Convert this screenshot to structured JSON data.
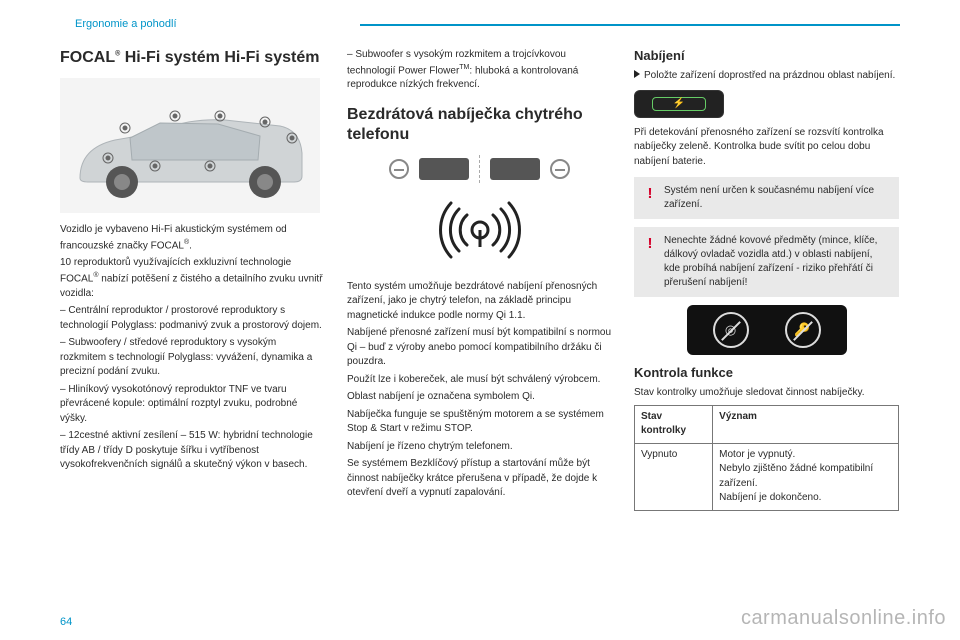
{
  "header": {
    "section": "Ergonomie a pohodlí"
  },
  "page_number": "64",
  "watermark": "carmanualsonline.info",
  "col1": {
    "title_html": "FOCAL<sup>®</sup> Hi-Fi systém  Hi-Fi systém",
    "p1_html": "Vozidlo je vybaveno Hi-Fi akustickým systémem od francouzské značky FOCAL<sup>®</sup>.",
    "p2_html": "10 reproduktorů využívajících exkluzivní technologie FOCAL<sup>®</sup> nabízí potěšení z čistého a detailního zvuku uvnitř vozidla:",
    "b1": "–  Centrální reproduktor / prostorové reproduktory s technologií Polyglass: podmanivý zvuk a prostorový dojem.",
    "b2": "–  Subwoofery / středové reproduktory s vysokým rozkmitem s technologií Polyglass: vyvážení, dynamika a precizní podání zvuku.",
    "b3": "–  Hliníkový vysokotónový reproduktor TNF ve tvaru převrácené kopule: optimální rozptyl zvuku, podrobné výšky.",
    "b4": "–  12cestné aktivní zesílení – 515 W: hybridní technologie třídy AB / třídy D poskytuje šířku i vytříbenost vysokofrekvenčních signálů a skutečný výkon v basech."
  },
  "col2": {
    "top_html": "–  Subwoofer s vysokým rozkmitem a trojcívkovou technologií Power Flower<sup>TM</sup>: hluboká a kontrolovaná reprodukce nízkých frekvencí.",
    "title": "Bezdrátová nabíječka chytrého telefonu",
    "p1": "Tento systém umožňuje bezdrátové nabíjení přenosných zařízení, jako je chytrý telefon, na základě principu magnetické indukce podle normy Qi 1.1.",
    "p2": "Nabíjené přenosné zařízení musí být kompatibilní s normou Qi – buď z výroby anebo pomocí kompatibilního držáku či pouzdra.",
    "p3": "Použít lze i kobereček, ale musí být schválený výrobcem.",
    "p4": "Oblast nabíjení je označena symbolem Qi.",
    "p5": "Nabíječka funguje se spuštěným motorem a se systémem Stop & Start v režimu STOP.",
    "p6": "Nabíjení je řízeno chytrým telefonem.",
    "p7": "Se systémem Bezklíčový přístup a startování může být činnost nabíječky krátce přerušena v případě, že dojde k otevření dveří a vypnutí zapalování."
  },
  "col3": {
    "h_charge": "Nabíjení",
    "charge_instr": "Položte zařízení doprostřed na prázdnou oblast nabíjení.",
    "detect": "Při detekování přenosného zařízení se rozsvítí kontrolka nabíječky zeleně. Kontrolka bude svítit po celou dobu nabíjení baterie.",
    "warn1": "Systém není určen k současnému nabíjení více zařízení.",
    "warn2": "Nenechte žádné kovové předměty (mince, klíče, dálkový ovladač vozidla atd.) v oblasti nabíjení, kde probíhá nabíjení zařízení - riziko přehřátí či přerušení nabíjení!",
    "h_func": "Kontrola funkce",
    "func_p": "Stav kontrolky umožňuje sledovat činnost nabíječky.",
    "table": {
      "th1": "Stav kontrolky",
      "th2": "Význam",
      "r1c1": "Vypnuto",
      "r1c2": "Motor je vypnutý.\nNebylo zjištěno žádné kompatibilní zařízení.\nNabíjení je dokončeno."
    }
  }
}
